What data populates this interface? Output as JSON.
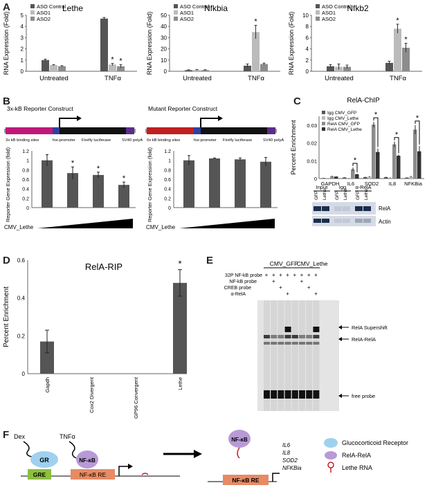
{
  "letters": {
    "a": "A",
    "b": "B",
    "c": "C",
    "d": "D",
    "e": "E",
    "f": "F"
  },
  "colors": {
    "dark": "#555555",
    "light": "#bbbbbb",
    "mid": "#8c8c8c",
    "black": "#111111"
  },
  "panelA": {
    "ylabel": "RNA Expression (Fold)",
    "legend": [
      "ASO Control",
      "ASO1",
      "ASO2"
    ],
    "categories": [
      "Untreated",
      "TNFα"
    ],
    "charts": [
      {
        "title": "Lethe",
        "ylim": [
          0,
          5
        ],
        "ticks": [
          "0",
          "1",
          "2",
          "3",
          "4",
          "5"
        ],
        "values": [
          [
            1.0,
            0.55,
            0.45
          ],
          [
            4.7,
            0.6,
            0.45
          ]
        ],
        "errors": [
          [
            0.08,
            0.04,
            0.05
          ],
          [
            0.1,
            0.1,
            0.15
          ]
        ],
        "stars": [
          [
            false,
            false,
            false
          ],
          [
            false,
            true,
            true
          ]
        ]
      },
      {
        "title": "Nfkbia",
        "ylim": [
          0,
          50
        ],
        "ticks": [
          "0",
          "10",
          "20",
          "30",
          "40",
          "50"
        ],
        "values": [
          [
            1.0,
            1.2,
            1.1
          ],
          [
            5.0,
            35.0,
            6.5
          ]
        ],
        "errors": [
          [
            0.3,
            0.3,
            0.3
          ],
          [
            1.5,
            6.0,
            0.8
          ]
        ],
        "stars": [
          [
            false,
            false,
            false
          ],
          [
            false,
            true,
            false
          ]
        ]
      },
      {
        "title": "Nfkb2",
        "ylim": [
          0,
          10
        ],
        "ticks": [
          "0",
          "2",
          "4",
          "6",
          "8",
          "10"
        ],
        "values": [
          [
            0.9,
            0.8,
            0.8
          ],
          [
            1.5,
            7.6,
            4.2
          ]
        ],
        "errors": [
          [
            0.3,
            0.5,
            0.3
          ],
          [
            0.3,
            0.8,
            0.8
          ]
        ],
        "stars": [
          [
            false,
            false,
            false
          ],
          [
            false,
            true,
            true
          ]
        ]
      }
    ]
  },
  "panelB": {
    "construct1_title": "3x-kB Reporter Construct",
    "construct2_title": "Mutant Reporter Construct",
    "c1_labels": [
      "3x kB binding sites",
      "fos-promoter",
      "Firefly luciferase",
      "SV40 polyA"
    ],
    "c2_labels": [
      "0x kB binding sites",
      "fos-promoter",
      "Firefly luciferase",
      "SV40 polyA"
    ],
    "ylabel": "Reporter Gene Expression (fold)",
    "ticks": [
      "0",
      "0.2",
      "0.4",
      "0.6",
      "0.8",
      "1",
      "1.2"
    ],
    "xlabel": "CMV_Lethe",
    "chart1": {
      "values": [
        1.0,
        0.73,
        0.69,
        0.48
      ],
      "errors": [
        0.12,
        0.13,
        0.06,
        0.06
      ],
      "stars": [
        false,
        true,
        true,
        true
      ]
    },
    "chart2": {
      "values": [
        1.0,
        1.04,
        1.02,
        0.97
      ],
      "errors": [
        0.1,
        0.01,
        0.03,
        0.09
      ],
      "stars": [
        false,
        false,
        false,
        false
      ]
    }
  },
  "panelC": {
    "title": "RelA-ChIP",
    "ylabel": "Percent Enrichment",
    "ticks": [
      "0",
      "0.01",
      "0.02",
      "0.03"
    ],
    "ylim": [
      0,
      0.035
    ],
    "legend": [
      "Igg CMV_GFP",
      "Igg CMV_Lethe",
      "RelA CMV_GFP",
      "RelA CMV_Lethe"
    ],
    "categories": [
      "GAPDH",
      "IL6",
      "SOD2",
      "IL8",
      "NFKBia"
    ],
    "values": [
      [
        0.0003,
        0.0002,
        0.0013,
        0.0011
      ],
      [
        0.0006,
        0.0003,
        0.0052,
        0.0024
      ],
      [
        0.0008,
        0.0011,
        0.0303,
        0.0149
      ],
      [
        0.0008,
        0.0005,
        0.0192,
        0.0128
      ],
      [
        0.0005,
        0.0011,
        0.0275,
        0.0153
      ]
    ],
    "errors": [
      [
        0.0001,
        0.0001,
        0.0003,
        0.0002
      ],
      [
        0.0002,
        0.0001,
        0.001,
        0.0003
      ],
      [
        0.0002,
        0.0003,
        0.0015,
        0.002
      ],
      [
        0.0002,
        0.0002,
        0.0015,
        0.0006
      ],
      [
        0.0002,
        0.0004,
        0.0025,
        0.003
      ]
    ],
    "blot_groups": [
      "Input",
      "Igg",
      "α-RelA"
    ],
    "blot_lanes": [
      "GFP",
      "Lethe",
      "GFP",
      "Lethe",
      "GFP",
      "Lethe"
    ],
    "blot_rows": [
      "RelA",
      "Actin"
    ]
  },
  "panelD": {
    "title": "RelA-RIP",
    "ylabel": "Percent Enrichment",
    "ticks": [
      "0",
      "0.2",
      "0.4",
      "0.6"
    ],
    "ylim": [
      0,
      0.6
    ],
    "categories": [
      "Gapdh",
      "Cox2 Divergent",
      "GP96 Convergent",
      "Lethe"
    ],
    "values": [
      0.17,
      0,
      0,
      0.48
    ],
    "errors": [
      0.06,
      0,
      0,
      0.07
    ],
    "stars": [
      false,
      false,
      false,
      true
    ]
  },
  "panelE": {
    "groups": [
      "CMV_GFP",
      "CMV_Lethe"
    ],
    "row_labels": [
      "32P NF-kB probe",
      "NF-kB probe",
      "CREB probe",
      "α-RelA"
    ],
    "row_signs": [
      [
        "+",
        "+",
        "+",
        "+",
        "+",
        "+",
        "+",
        "+"
      ],
      [
        "",
        "+",
        "",
        "",
        "",
        "+",
        "",
        ""
      ],
      [
        "",
        "",
        "+",
        "",
        "",
        "",
        "+",
        ""
      ],
      [
        "",
        "",
        "",
        "+",
        "",
        "",
        "",
        "+"
      ]
    ],
    "band_labels": [
      "RelA Supershift",
      "RelA-RelA",
      "free probe"
    ]
  },
  "panelF": {
    "left": {
      "dex": "Dex",
      "tnf": "TNFα",
      "gr": "GR",
      "gre": "GRE",
      "nfkb": "NF-κB",
      "nfkb_re": "NF-κB RE"
    },
    "right": {
      "nfkb": "NF-κB",
      "nfkb_re": "NF-κB RE",
      "genes": [
        "IL6",
        "IL8",
        "SOD2",
        "NFKBia"
      ]
    },
    "legend": [
      "Glucocorticoid Receptor",
      "RelA-RelA",
      "Lethe RNA"
    ]
  }
}
